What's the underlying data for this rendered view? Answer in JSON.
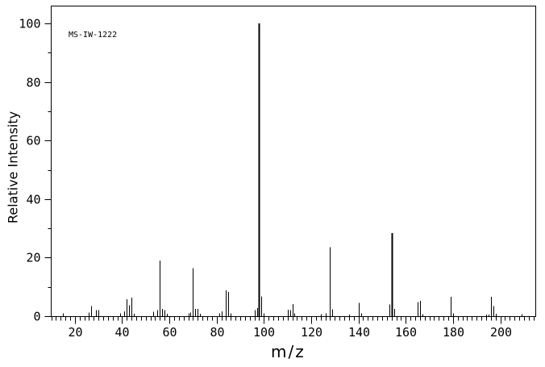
{
  "chart_data": {
    "type": "bar",
    "subtype": "mass-spectrum",
    "annotation": "MS-IW-1222",
    "xlabel": "m/z",
    "ylabel": "Relative Intensity",
    "xlim": [
      10,
      215
    ],
    "ylim": [
      0,
      100
    ],
    "x_major_ticks": [
      20,
      40,
      60,
      80,
      100,
      120,
      140,
      160,
      180,
      200
    ],
    "x_minor_step": 2,
    "y_major_ticks": [
      0,
      20,
      40,
      60,
      80,
      100
    ],
    "y_minor_step": 10,
    "grid": false,
    "legend": null,
    "peaks": [
      [
        15,
        1.0
      ],
      [
        26,
        1.2
      ],
      [
        27,
        3.4
      ],
      [
        29,
        2.0
      ],
      [
        30,
        2.0
      ],
      [
        39,
        1.0
      ],
      [
        41,
        1.7
      ],
      [
        42,
        5.8
      ],
      [
        43,
        3.7
      ],
      [
        44,
        6.4
      ],
      [
        45,
        0.8
      ],
      [
        53,
        1.5
      ],
      [
        55,
        2.0
      ],
      [
        56,
        19.0
      ],
      [
        57,
        2.5
      ],
      [
        58,
        2.0
      ],
      [
        59,
        0.8
      ],
      [
        68,
        1.0
      ],
      [
        69,
        1.2
      ],
      [
        70,
        16.4
      ],
      [
        71,
        2.5
      ],
      [
        72,
        2.5
      ],
      [
        73,
        0.8
      ],
      [
        81,
        1.0
      ],
      [
        82,
        1.7
      ],
      [
        84,
        8.8
      ],
      [
        85,
        8.2
      ],
      [
        86,
        1.0
      ],
      [
        96,
        2.1
      ],
      [
        97,
        2.7
      ],
      [
        98,
        100.0
      ],
      [
        99,
        6.8
      ],
      [
        100,
        1.0
      ],
      [
        110,
        2.2
      ],
      [
        111,
        2.0
      ],
      [
        112,
        4.2
      ],
      [
        113,
        1.0
      ],
      [
        124,
        0.7
      ],
      [
        126,
        1.0
      ],
      [
        128,
        23.6
      ],
      [
        129,
        2.4
      ],
      [
        136,
        0.6
      ],
      [
        140,
        4.5
      ],
      [
        141,
        1.0
      ],
      [
        153,
        4.0
      ],
      [
        154,
        28.4
      ],
      [
        155,
        2.5
      ],
      [
        165,
        4.8
      ],
      [
        166,
        5.3
      ],
      [
        167,
        0.7
      ],
      [
        179,
        6.6
      ],
      [
        180,
        0.9
      ],
      [
        194,
        0.6
      ],
      [
        195,
        0.6
      ],
      [
        196,
        6.6
      ],
      [
        197,
        3.5
      ],
      [
        198,
        0.8
      ],
      [
        209,
        0.7
      ]
    ],
    "colors": {
      "foreground": "#000000",
      "background": "#ffffff"
    }
  }
}
